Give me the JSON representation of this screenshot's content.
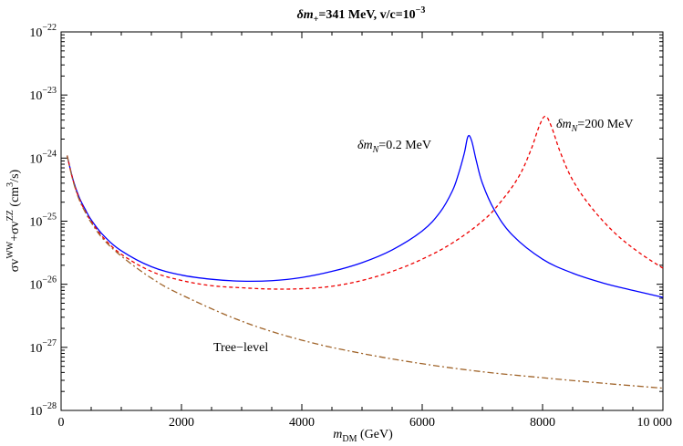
{
  "chart_data": {
    "type": "line",
    "title": {
      "prefix": "δm",
      "prefix_sub": "+",
      "middle": "=341 MeV, v/c=10",
      "exp": "−3"
    },
    "xlabel": {
      "main": "m",
      "sub": "DM",
      "rest": " (GeV)"
    },
    "ylabel": {
      "a": "σv",
      "a_sup": "WW",
      "plus": "+σv",
      "b_sup": "ZZ",
      "unit": " (cm",
      "unit_sup": "3",
      "unit_end": "/s)"
    },
    "x_scale": "linear",
    "y_scale": "log",
    "xlim": [
      0,
      10000
    ],
    "ylim": [
      1e-28,
      1e-22
    ],
    "x_ticks": [
      {
        "value": 0,
        "label": "0"
      },
      {
        "value": 2000,
        "label": "2000"
      },
      {
        "value": 4000,
        "label": "4000"
      },
      {
        "value": 6000,
        "label": "6000"
      },
      {
        "value": 8000,
        "label": "8000"
      },
      {
        "value": 10000,
        "label": "10 000"
      }
    ],
    "y_ticks": [
      {
        "value": 1e-28,
        "base": "10",
        "exp": "−28"
      },
      {
        "value": 1e-27,
        "base": "10",
        "exp": "−27"
      },
      {
        "value": 1e-26,
        "base": "10",
        "exp": "−26"
      },
      {
        "value": 1e-25,
        "base": "10",
        "exp": "−25"
      },
      {
        "value": 1e-24,
        "base": "10",
        "exp": "−24"
      },
      {
        "value": 1e-23,
        "base": "10",
        "exp": "−23"
      },
      {
        "value": 1e-22,
        "base": "10",
        "exp": "−22"
      }
    ],
    "grid": false,
    "series": [
      {
        "label_main": "δm",
        "label_sub": "N",
        "label_rest": "=0.2 MeV",
        "color": "#0000ff",
        "style": "solid",
        "x": [
          100,
          200,
          300,
          400,
          500,
          700,
          1000,
          1500,
          2000,
          2500,
          3000,
          3500,
          4000,
          4500,
          5000,
          5500,
          6000,
          6300,
          6500,
          6600,
          6700,
          6760,
          6820,
          6900,
          7000,
          7200,
          7500,
          8000,
          8500,
          9000,
          9500,
          10000
        ],
        "y": [
          1.1e-24,
          4.5e-25,
          2.4e-25,
          1.55e-25,
          1.05e-25,
          6e-26,
          3.4e-26,
          1.9e-26,
          1.4e-26,
          1.2e-26,
          1.12e-26,
          1.14e-26,
          1.28e-26,
          1.6e-26,
          2.2e-26,
          3.5e-26,
          7e-26,
          1.4e-25,
          3e-25,
          5.5e-25,
          1.2e-24,
          2.2e-24,
          1.9e-24,
          9e-25,
          4e-25,
          1.5e-25,
          6e-26,
          2.5e-26,
          1.5e-26,
          1.05e-26,
          8e-27,
          6.2e-27
        ]
      },
      {
        "label_main": "δm",
        "label_sub": "N",
        "label_rest": "=200 MeV",
        "color": "#ee0000",
        "style": "dashed",
        "x": [
          100,
          200,
          300,
          400,
          500,
          700,
          1000,
          1500,
          2000,
          2500,
          3000,
          3500,
          4000,
          4500,
          5000,
          5500,
          6000,
          6500,
          7000,
          7300,
          7600,
          7800,
          7950,
          8050,
          8150,
          8300,
          8500,
          8800,
          9200,
          9600,
          10000
        ],
        "y": [
          1.1e-24,
          4.4e-25,
          2.3e-25,
          1.45e-25,
          1e-25,
          5.5e-26,
          3e-26,
          1.6e-26,
          1.15e-26,
          9.5e-27,
          8.8e-27,
          8.4e-27,
          8.5e-27,
          9.3e-27,
          1.15e-26,
          1.6e-26,
          2.5e-26,
          4.5e-26,
          1e-25,
          2e-25,
          5e-25,
          1.3e-24,
          3.3e-24,
          4.6e-24,
          3.1e-24,
          1.2e-24,
          4.5e-25,
          1.7e-25,
          6.5e-26,
          3.2e-26,
          1.8e-26
        ]
      },
      {
        "label": "Tree−level",
        "color": "#a0642a",
        "style": "dashdot",
        "x": [
          100,
          200,
          300,
          400,
          500,
          700,
          1000,
          1500,
          2000,
          3000,
          4000,
          5000,
          6000,
          7000,
          8000,
          9000,
          10000
        ],
        "y": [
          1.1e-24,
          4.3e-25,
          2.2e-25,
          1.4e-25,
          9.5e-26,
          5.2e-26,
          2.8e-26,
          1.25e-26,
          6.8e-27,
          2.6e-27,
          1.3e-27,
          8e-28,
          5.5e-28,
          4.1e-28,
          3.3e-28,
          2.7e-28,
          2.25e-28
        ]
      }
    ]
  }
}
